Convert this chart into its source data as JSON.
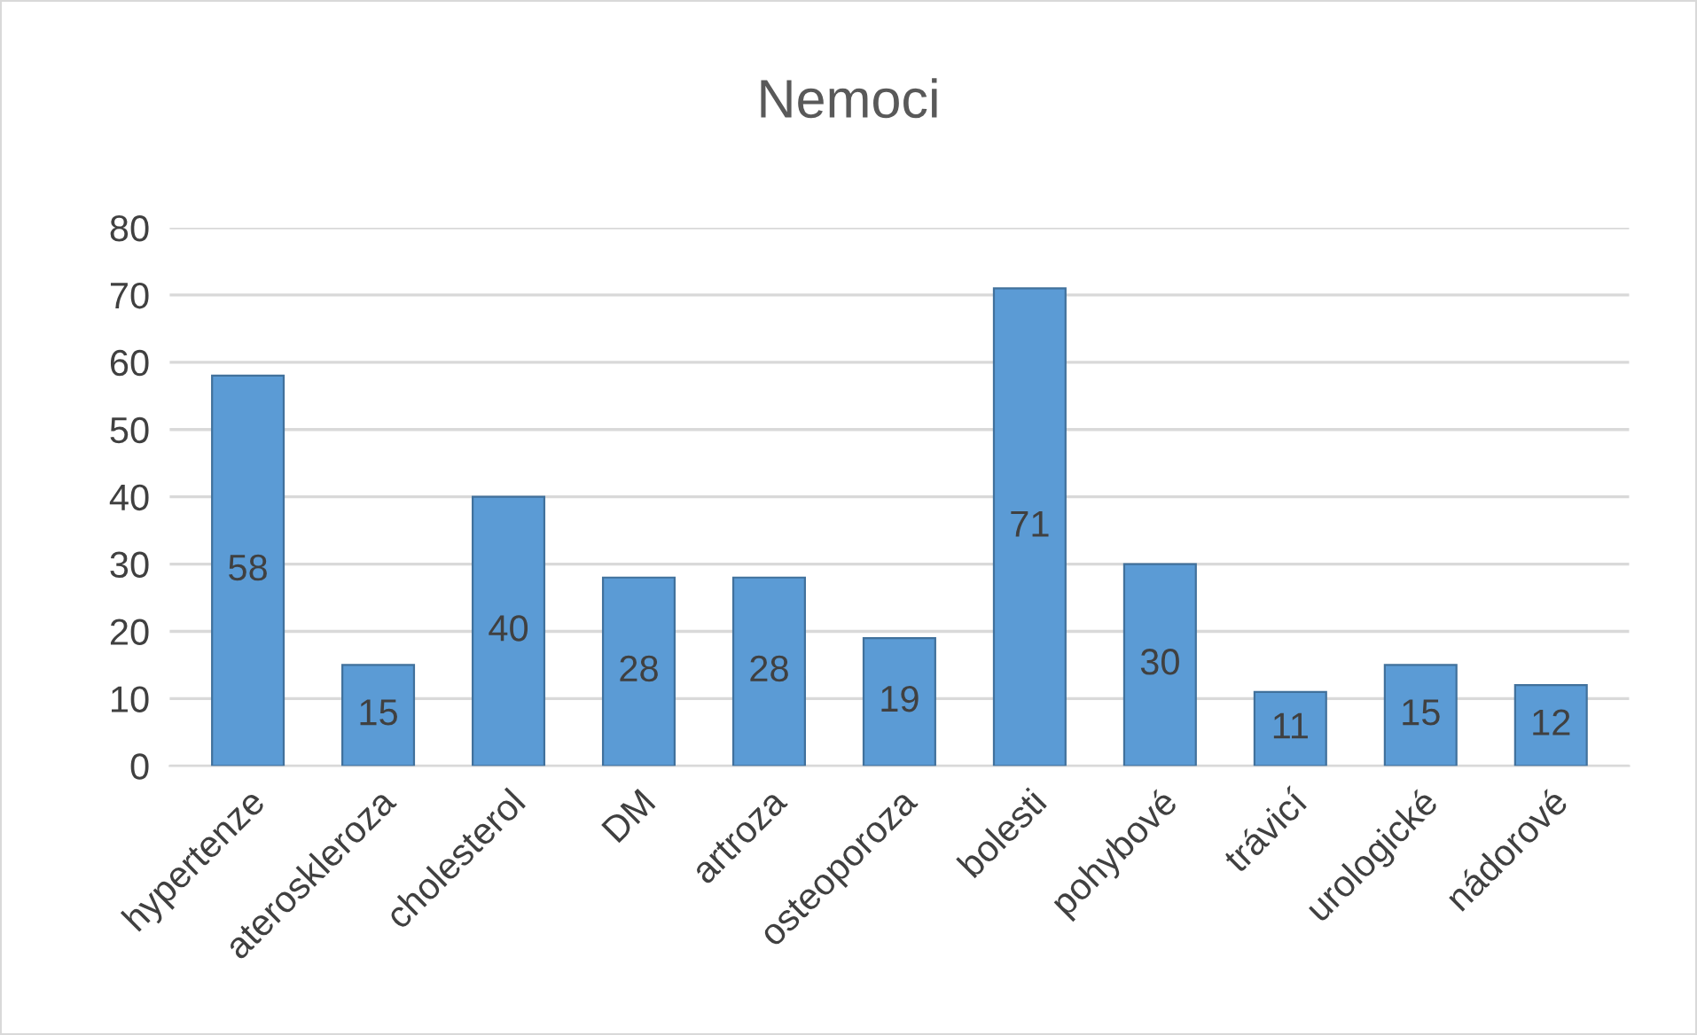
{
  "chart_data": {
    "type": "bar",
    "title": "Nemoci",
    "categories": [
      "hypertenze",
      "ateroskleroza",
      "cholesterol",
      "DM",
      "artroza",
      "osteoporoza",
      "bolesti",
      "pohybové",
      "trávicí",
      "urologické",
      "nádorové"
    ],
    "values": [
      58,
      15,
      40,
      28,
      28,
      19,
      71,
      30,
      11,
      15,
      12
    ],
    "color": "#5b9bd5",
    "ylim": [
      0,
      80
    ],
    "yticks": [
      0,
      10,
      20,
      30,
      40,
      50,
      60,
      70,
      80
    ],
    "grid": "y",
    "data_labels": true
  }
}
